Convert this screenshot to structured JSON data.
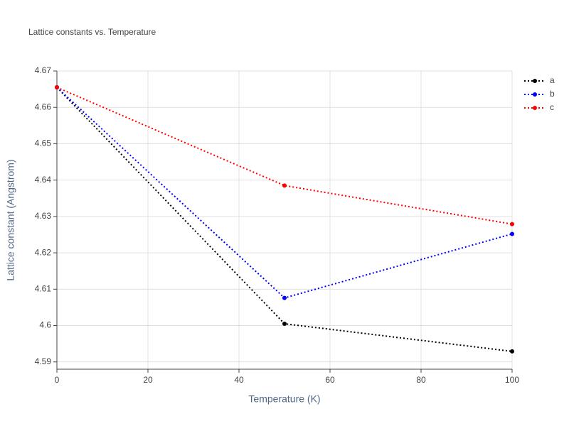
{
  "chart_data": {
    "type": "line",
    "title": "Lattice constants vs. Temperature",
    "x_label": "Temperature (K)",
    "y_label": "Lattice constant (Angstrom)",
    "x": [
      0,
      50,
      100
    ],
    "series": [
      {
        "name": "a",
        "color": "#000000",
        "values": [
          4.6655,
          4.6005,
          4.5929
        ]
      },
      {
        "name": "b",
        "color": "#0000ff",
        "values": [
          4.6655,
          4.6076,
          4.6252
        ]
      },
      {
        "name": "c",
        "color": "#ff0000",
        "values": [
          4.6655,
          4.6385,
          4.6279
        ]
      }
    ],
    "xlim": [
      0,
      100
    ],
    "xticks": [
      0,
      20,
      40,
      60,
      80,
      100
    ],
    "ylim": [
      4.588,
      4.67
    ],
    "yticks": [
      4.59,
      4.6,
      4.61,
      4.62,
      4.63,
      4.64,
      4.65,
      4.66,
      4.67
    ],
    "grid": true,
    "legend": "top-right",
    "line_style": "dotted"
  }
}
